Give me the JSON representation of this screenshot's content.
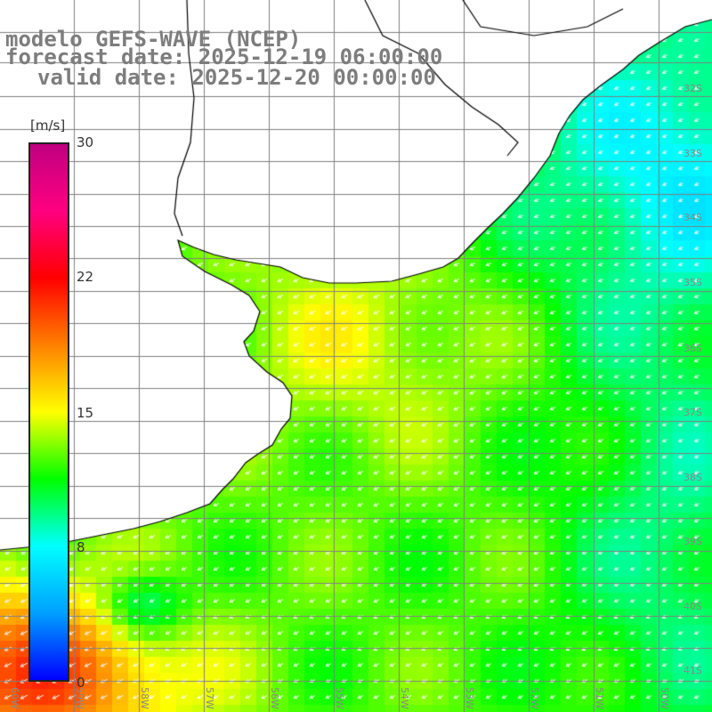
{
  "header": {
    "title_line1": "modelo GEFS-WAVE (NCEP)",
    "title_line2": "forecast date: 2025-12-19 06:00:00",
    "title_line3": "valid date: 2025-12-20 00:00:00"
  },
  "colorbar": {
    "unit": "[m/s]",
    "ticks": [
      "30",
      "22",
      "15",
      "8",
      "0"
    ],
    "range": [
      0,
      30
    ],
    "colors": [
      "#0000ff",
      "#00a0ff",
      "#00ffff",
      "#00ff00",
      "#ffff00",
      "#ff8000",
      "#ff0000",
      "#ff0080",
      "#c00080"
    ]
  },
  "map": {
    "lat_labels": [
      "32S",
      "33S",
      "34S",
      "35S",
      "36S",
      "37S",
      "38S",
      "39S",
      "40S",
      "41S"
    ],
    "lon_labels": [
      "60W",
      "59W",
      "58W",
      "57W",
      "56W",
      "55W",
      "54W",
      "53W",
      "52W",
      "51W",
      "50W"
    ],
    "land_color": "#ffffff",
    "grid_color": "#808080",
    "coast_color": "#000000",
    "arrow_color": "#ffffff"
  }
}
